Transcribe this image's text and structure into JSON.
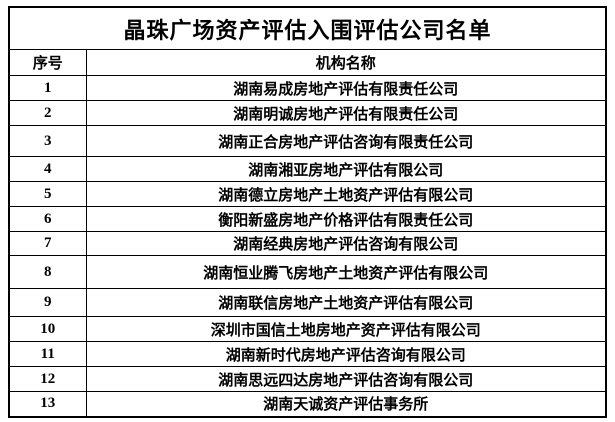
{
  "page": {
    "background_color": "#ffffff",
    "border_color": "#000000",
    "text_color": "#000000"
  },
  "title": "晶珠广场资产评估入围评估公司名单",
  "table": {
    "columns": [
      "序号",
      "机构名称"
    ],
    "rows": [
      {
        "seq": "1",
        "name": "湖南易成房地产评估有限责任公司"
      },
      {
        "seq": "2",
        "name": "湖南明诚房地产评估有限责任公司"
      },
      {
        "seq": "3",
        "name": "湖南正合房地产评估咨询有限责任公司"
      },
      {
        "seq": "4",
        "name": "湖南湘亚房地产评估有限公司"
      },
      {
        "seq": "5",
        "name": "湖南德立房地产土地资产评估有限公司"
      },
      {
        "seq": "6",
        "name": "衡阳新盛房地产价格评估有限责任公司"
      },
      {
        "seq": "7",
        "name": "湖南经典房地产评估咨询有限公司"
      },
      {
        "seq": "8",
        "name": "湖南恒业腾飞房地产土地资产评估有限公司"
      },
      {
        "seq": "9",
        "name": "湖南联信房地产土地资产评估有限公司"
      },
      {
        "seq": "10",
        "name": "深圳市国信土地房地产资产评估有限公司"
      },
      {
        "seq": "11",
        "name": "湖南新时代房地产评估咨询有限公司"
      },
      {
        "seq": "12",
        "name": "湖南思远四达房地产评估咨询有限公司"
      },
      {
        "seq": "13",
        "name": "湖南天诚资产评估事务所"
      }
    ]
  }
}
